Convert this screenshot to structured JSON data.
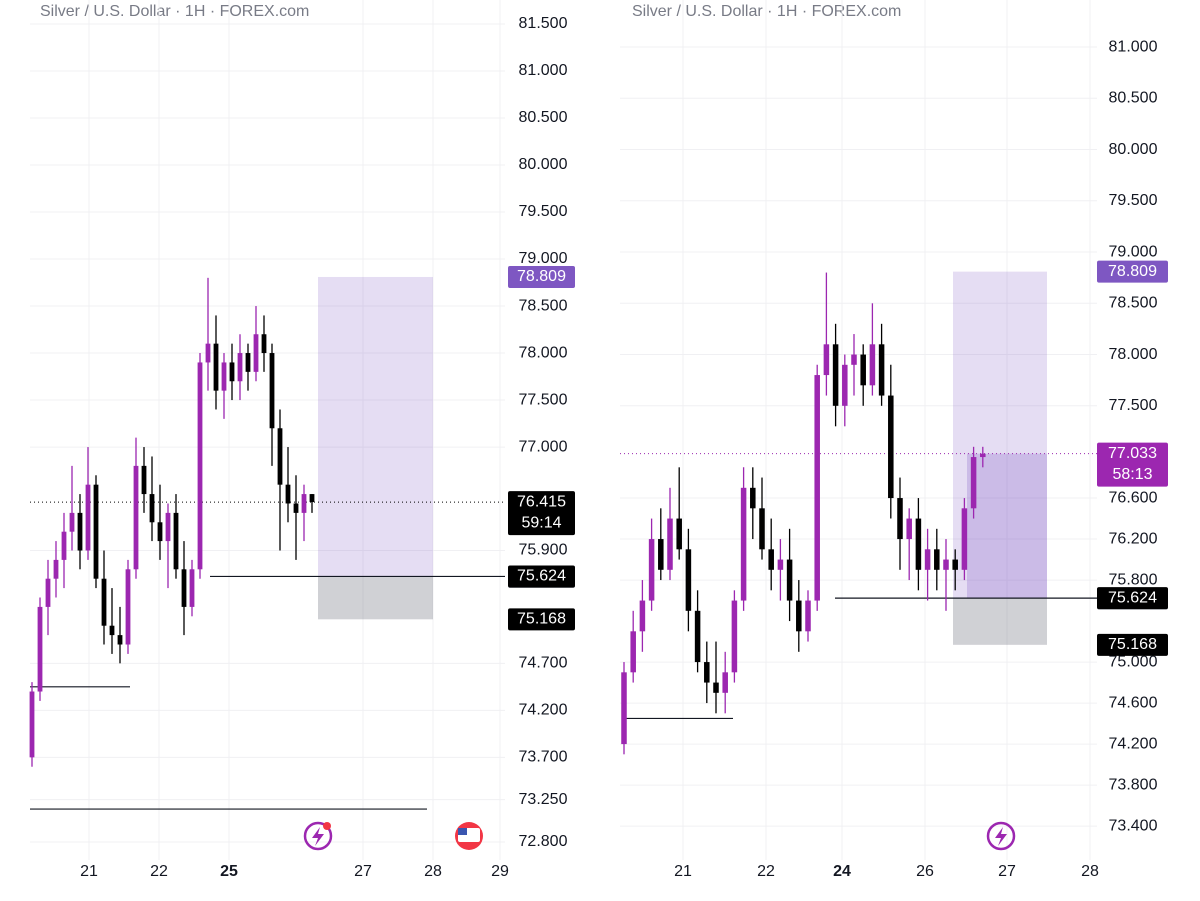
{
  "chart_data": [
    {
      "type": "candlestick",
      "title": "Silver / U.S. Dollar · 1H · FOREX.com",
      "open": [
        73.7,
        74.4,
        75.3,
        75.6,
        75.8,
        76.1,
        76.3,
        75.9,
        76.6,
        75.6,
        75.1,
        75.0,
        74.9,
        75.7,
        76.8,
        76.5,
        76.2,
        76.0,
        76.3,
        75.7,
        75.3,
        75.7,
        77.9,
        78.1,
        77.6,
        77.9,
        77.7,
        78.0,
        77.8,
        78.2,
        78.0,
        77.2,
        76.6,
        76.4,
        76.3,
        76.5
      ],
      "high": [
        74.5,
        75.4,
        75.8,
        76.0,
        76.3,
        76.8,
        76.5,
        77.0,
        76.7,
        75.9,
        75.5,
        75.3,
        75.8,
        77.1,
        77.0,
        76.9,
        76.6,
        76.4,
        76.5,
        76.0,
        75.8,
        78.0,
        78.8,
        78.4,
        78.0,
        78.1,
        78.2,
        78.1,
        78.5,
        78.4,
        78.1,
        77.4,
        77.0,
        76.7,
        76.6,
        76.5
      ],
      "low": [
        73.6,
        74.3,
        75.0,
        75.4,
        75.5,
        75.9,
        75.7,
        75.8,
        75.5,
        74.9,
        74.8,
        74.7,
        74.8,
        75.6,
        76.3,
        76.0,
        75.8,
        75.5,
        75.6,
        75.0,
        75.2,
        75.6,
        77.6,
        77.4,
        77.3,
        77.5,
        77.5,
        77.6,
        77.7,
        77.8,
        76.8,
        75.9,
        76.2,
        75.8,
        76.0,
        76.3
      ],
      "close": [
        74.4,
        75.3,
        75.6,
        75.8,
        76.1,
        76.3,
        75.9,
        76.6,
        75.6,
        75.1,
        75.0,
        74.9,
        75.7,
        76.8,
        76.5,
        76.2,
        76.0,
        76.3,
        75.7,
        75.3,
        75.7,
        77.9,
        78.1,
        77.6,
        77.9,
        77.7,
        78.0,
        77.8,
        78.2,
        78.0,
        77.2,
        76.6,
        76.4,
        76.3,
        76.5,
        76.415
      ],
      "up_color": "#9c27b0",
      "down_color": "#000000",
      "ylim": [
        72.172,
        81.755
      ],
      "yticks": [
        {
          "value": 81.5,
          "label": "81.500"
        },
        {
          "value": 81,
          "label": "81.000"
        },
        {
          "value": 80.5,
          "label": "80.500"
        },
        {
          "value": 80,
          "label": "80.000"
        },
        {
          "value": 79.5,
          "label": "79.500"
        },
        {
          "value": 79,
          "label": "79.000"
        },
        {
          "value": 78.5,
          "label": "78.500"
        },
        {
          "value": 78,
          "label": "78.000"
        },
        {
          "value": 77.5,
          "label": "77.500"
        },
        {
          "value": 77,
          "label": "77.000"
        },
        {
          "value": 75.9,
          "label": "75.900"
        },
        {
          "value": 74.7,
          "label": "74.700"
        },
        {
          "value": 74.2,
          "label": "74.200"
        },
        {
          "value": 73.7,
          "label": "73.700"
        },
        {
          "value": 73.25,
          "label": "73.250"
        },
        {
          "value": 72.8,
          "label": "72.800"
        }
      ],
      "xticks": [
        "21",
        "22",
        "25",
        "27",
        "28",
        "29"
      ],
      "bold_xtick": 2,
      "position": {
        "target": 78.809,
        "entry": 75.624,
        "stop": 75.168
      },
      "mid_label": {
        "value": 75.62,
        "label": "75.620"
      },
      "current": {
        "value": 76.415,
        "countdown": "59:14",
        "color": "#000000"
      },
      "lines": [
        74.45,
        73.15
      ],
      "grid": true
    },
    {
      "type": "candlestick",
      "title": "Silver / U.S. Dollar · 1H · FOREX.com",
      "open": [
        74.2,
        74.9,
        75.3,
        75.6,
        76.2,
        75.9,
        76.4,
        76.1,
        75.5,
        75.0,
        74.8,
        74.7,
        74.9,
        75.6,
        76.7,
        76.5,
        76.1,
        75.9,
        76.0,
        75.6,
        75.3,
        75.6,
        77.8,
        78.1,
        77.5,
        77.9,
        78.0,
        77.7,
        78.1,
        77.6,
        76.6,
        76.2,
        76.4,
        75.9,
        76.1,
        75.9,
        76.0,
        75.9,
        76.5,
        77.0
      ],
      "high": [
        75.0,
        75.5,
        75.8,
        76.4,
        76.5,
        76.7,
        76.9,
        76.3,
        75.7,
        75.2,
        75.2,
        75.1,
        75.7,
        76.9,
        76.9,
        76.8,
        76.4,
        76.2,
        76.3,
        75.8,
        75.7,
        77.9,
        78.8,
        78.3,
        78.0,
        78.2,
        78.1,
        78.5,
        78.3,
        77.9,
        76.8,
        76.5,
        76.6,
        76.3,
        76.3,
        76.2,
        76.1,
        76.6,
        77.1,
        77.1
      ],
      "low": [
        74.1,
        74.8,
        75.1,
        75.5,
        75.8,
        75.8,
        76.0,
        75.3,
        74.9,
        74.6,
        74.5,
        74.5,
        74.8,
        75.5,
        76.2,
        76.0,
        75.7,
        75.6,
        75.4,
        75.1,
        75.2,
        75.5,
        77.6,
        77.3,
        77.3,
        77.6,
        77.5,
        77.6,
        77.5,
        76.4,
        75.9,
        75.8,
        75.7,
        75.6,
        75.7,
        75.5,
        75.7,
        75.8,
        76.4,
        76.9
      ],
      "close": [
        74.9,
        75.3,
        75.6,
        76.2,
        75.9,
        76.4,
        76.1,
        75.5,
        75.0,
        74.8,
        74.7,
        74.9,
        75.6,
        76.7,
        76.5,
        76.1,
        75.9,
        76.0,
        75.6,
        75.3,
        75.6,
        77.8,
        78.1,
        77.5,
        77.9,
        78.0,
        77.7,
        78.1,
        77.6,
        76.6,
        76.2,
        76.4,
        75.9,
        76.1,
        75.9,
        76.0,
        75.9,
        76.5,
        77.0,
        77.033
      ],
      "up_color": "#9c27b0",
      "down_color": "#000000",
      "ylim": [
        72.669,
        81.459
      ],
      "yticks": [
        {
          "value": 81,
          "label": "81.000"
        },
        {
          "value": 80.5,
          "label": "80.500"
        },
        {
          "value": 80,
          "label": "80.000"
        },
        {
          "value": 79.5,
          "label": "79.500"
        },
        {
          "value": 79,
          "label": "79.000"
        },
        {
          "value": 78.5,
          "label": "78.500"
        },
        {
          "value": 78,
          "label": "78.000"
        },
        {
          "value": 77.5,
          "label": "77.500"
        },
        {
          "value": 76.6,
          "label": "76.600"
        },
        {
          "value": 76.2,
          "label": "76.200"
        },
        {
          "value": 75.8,
          "label": "75.800"
        },
        {
          "value": 75,
          "label": "75.000"
        },
        {
          "value": 74.6,
          "label": "74.600"
        },
        {
          "value": 74.2,
          "label": "74.200"
        },
        {
          "value": 73.8,
          "label": "73.800"
        },
        {
          "value": 73.4,
          "label": "73.400"
        }
      ],
      "xticks": [
        "21",
        "22",
        "24",
        "26",
        "27",
        "28"
      ],
      "bold_xtick": 2,
      "position": {
        "target": 78.809,
        "entry": 75.624,
        "stop": 75.168
      },
      "mid_label": {
        "value": 75.62,
        "label": "75.620"
      },
      "current": {
        "value": 77.033,
        "countdown": "58:13",
        "color": "#9c27b0"
      },
      "lines": [
        74.45
      ],
      "grid": true
    }
  ]
}
